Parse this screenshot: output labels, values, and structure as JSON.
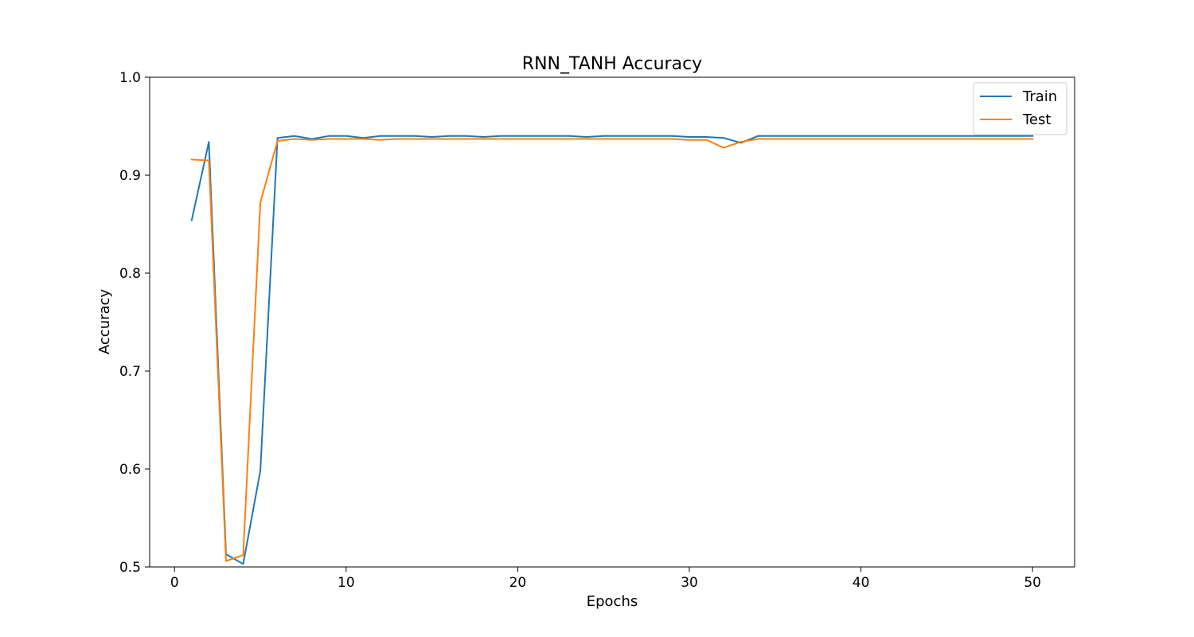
{
  "chart_data": {
    "type": "line",
    "title": "RNN_TANH Accuracy",
    "xlabel": "Epochs",
    "ylabel": "Accuracy",
    "xlim": [
      -1.45,
      52.45
    ],
    "ylim": [
      0.5,
      1.0
    ],
    "xticks": [
      0,
      10,
      20,
      30,
      40,
      50
    ],
    "yticks": [
      0.5,
      0.6,
      0.7,
      0.8,
      0.9,
      1.0
    ],
    "xtick_labels": [
      "0",
      "10",
      "20",
      "30",
      "40",
      "50"
    ],
    "ytick_labels": [
      "0.5",
      "0.6",
      "0.7",
      "0.8",
      "0.9",
      "1.0"
    ],
    "grid": false,
    "legend_position": "top-right",
    "x": [
      1,
      2,
      3,
      4,
      5,
      6,
      7,
      8,
      9,
      10,
      11,
      12,
      13,
      14,
      15,
      16,
      17,
      18,
      19,
      20,
      21,
      22,
      23,
      24,
      25,
      26,
      27,
      28,
      29,
      30,
      31,
      32,
      33,
      34,
      35,
      36,
      37,
      38,
      39,
      40,
      41,
      42,
      43,
      44,
      45,
      46,
      47,
      48,
      49,
      50
    ],
    "series": [
      {
        "name": "Train",
        "color": "#1f77b4",
        "values": [
          0.854,
          0.934,
          0.513,
          0.503,
          0.598,
          0.938,
          0.94,
          0.937,
          0.94,
          0.94,
          0.938,
          0.94,
          0.94,
          0.94,
          0.939,
          0.94,
          0.94,
          0.939,
          0.94,
          0.94,
          0.94,
          0.94,
          0.94,
          0.939,
          0.94,
          0.94,
          0.94,
          0.94,
          0.94,
          0.939,
          0.939,
          0.938,
          0.933,
          0.94,
          0.94,
          0.94,
          0.94,
          0.94,
          0.94,
          0.94,
          0.94,
          0.94,
          0.94,
          0.94,
          0.94,
          0.94,
          0.94,
          0.94,
          0.94,
          0.94
        ]
      },
      {
        "name": "Test",
        "color": "#ff7f0e",
        "values": [
          0.916,
          0.915,
          0.506,
          0.512,
          0.872,
          0.935,
          0.937,
          0.936,
          0.937,
          0.937,
          0.937,
          0.936,
          0.937,
          0.937,
          0.937,
          0.937,
          0.937,
          0.937,
          0.937,
          0.937,
          0.937,
          0.937,
          0.937,
          0.937,
          0.937,
          0.937,
          0.937,
          0.937,
          0.937,
          0.936,
          0.936,
          0.928,
          0.934,
          0.937,
          0.937,
          0.937,
          0.937,
          0.937,
          0.937,
          0.937,
          0.937,
          0.937,
          0.937,
          0.937,
          0.937,
          0.937,
          0.937,
          0.937,
          0.937,
          0.937
        ]
      }
    ]
  }
}
